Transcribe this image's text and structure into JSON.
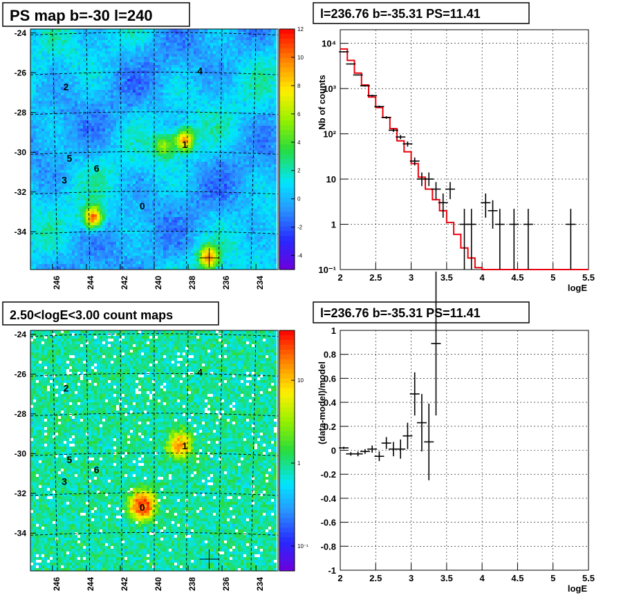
{
  "chart_data": [
    {
      "type": "heatmap",
      "title": "PS map b=-30 l=240",
      "x_ticks": [
        "246",
        "244",
        "242",
        "240",
        "238",
        "236",
        "234"
      ],
      "y_ticks": [
        "-24",
        "-26",
        "-28",
        "-30",
        "-32",
        "-34"
      ],
      "colorbar_ticks": [
        "12",
        "10",
        "8",
        "6",
        "4",
        "2",
        "0",
        "-2",
        "-4"
      ],
      "colorbar_range": [
        -5,
        12
      ],
      "sources": [
        {
          "label": "0",
          "l": 240.7,
          "b": -32.7
        },
        {
          "label": "1",
          "l": 238.2,
          "b": -29.6
        },
        {
          "label": "2",
          "l": 245.2,
          "b": -26.7
        },
        {
          "label": "3",
          "l": 245.3,
          "b": -31.4
        },
        {
          "label": "4",
          "l": 237.3,
          "b": -25.9
        },
        {
          "label": "5",
          "l": 245.0,
          "b": -30.3
        },
        {
          "label": "6",
          "l": 243.4,
          "b": -30.8
        }
      ],
      "hotspots": [
        {
          "l": 243.6,
          "b": -33.3,
          "value": 10
        },
        {
          "l": 239.4,
          "b": -29.7,
          "value": 5
        },
        {
          "l": 238.2,
          "b": -29.4,
          "value": 9
        },
        {
          "l": 236.8,
          "b": -35.3,
          "value": 9
        }
      ],
      "marker": {
        "l": 236.76,
        "b": -35.31
      }
    },
    {
      "type": "line",
      "title": "l=236.76 b=-35.31 PS=11.41",
      "xlabel": "logE",
      "ylabel": "Nb of counts",
      "yscale": "log",
      "xlim": [
        2,
        5.5
      ],
      "ylim": [
        0.1,
        20000
      ],
      "x_ticks": [
        "2",
        "2.5",
        "3",
        "3.5",
        "4",
        "4.5",
        "5",
        "5.5"
      ],
      "y_ticks": [
        "10^-1",
        "1",
        "10",
        "10^2",
        "10^3",
        "10^4"
      ],
      "grid": true,
      "series": [
        {
          "kind": "model_step",
          "color": "#e8000b",
          "edges": [
            2,
            2.1,
            2.2,
            2.3,
            2.4,
            2.5,
            2.6,
            2.7,
            2.8,
            2.9,
            3.0,
            3.1,
            3.2,
            3.3,
            3.4,
            3.5,
            3.6,
            3.7,
            3.8,
            3.9,
            4.0,
            5.5
          ],
          "values": [
            7500,
            4200,
            2200,
            1200,
            650,
            380,
            230,
            130,
            70,
            40,
            22,
            11,
            6,
            3.5,
            2,
            1.1,
            0.6,
            0.3,
            0.18,
            0.11,
            0.1
          ]
        },
        {
          "kind": "data_points",
          "color": "#000000",
          "x": [
            2.05,
            2.15,
            2.25,
            2.35,
            2.45,
            2.55,
            2.65,
            2.75,
            2.85,
            2.95,
            3.05,
            3.15,
            3.25,
            3.35,
            3.45,
            3.55,
            3.75,
            3.85,
            4.05,
            4.15,
            4.25,
            4.45,
            4.65,
            5.25
          ],
          "y": [
            6500,
            3500,
            2000,
            1150,
            700,
            400,
            230,
            120,
            85,
            60,
            25,
            10,
            10,
            6,
            3,
            6,
            1,
            1,
            3,
            2,
            1,
            1,
            1,
            1
          ],
          "ylo": [
            6300,
            3400,
            1950,
            1100,
            670,
            380,
            215,
            110,
            76,
            52,
            20,
            7,
            7,
            3.6,
            1.4,
            3.6,
            0.1,
            0.1,
            1.4,
            0.8,
            0.1,
            0.1,
            0.1,
            0.1
          ],
          "yhi": [
            6700,
            3600,
            2050,
            1200,
            730,
            420,
            245,
            131,
            94,
            68,
            30,
            14,
            14,
            8.6,
            4.8,
            8.6,
            2.2,
            2.2,
            4.8,
            3.4,
            2.2,
            2.2,
            2.2,
            2.2
          ]
        }
      ]
    },
    {
      "type": "heatmap",
      "title": "2.50<logE<3.00 count maps",
      "x_ticks": [
        "246",
        "244",
        "242",
        "240",
        "238",
        "236",
        "234"
      ],
      "y_ticks": [
        "-24",
        "-26",
        "-28",
        "-30",
        "-32",
        "-34"
      ],
      "colorbar_scale": "log",
      "colorbar_ticks": [
        "10",
        "1",
        "10^-1"
      ],
      "colorbar_range": [
        0.05,
        40
      ],
      "sources": [
        {
          "label": "0",
          "l": 240.7,
          "b": -32.7
        },
        {
          "label": "1",
          "l": 238.2,
          "b": -29.6
        },
        {
          "label": "2",
          "l": 245.2,
          "b": -26.7
        },
        {
          "label": "3",
          "l": 245.3,
          "b": -31.4
        },
        {
          "label": "4",
          "l": 237.3,
          "b": -25.9
        },
        {
          "label": "5",
          "l": 245.0,
          "b": -30.3
        },
        {
          "label": "6",
          "l": 243.4,
          "b": -30.8
        }
      ],
      "hotspots": [
        {
          "l": 240.7,
          "b": -32.6,
          "value": 30
        },
        {
          "l": 238.5,
          "b": -29.6,
          "value": 12
        }
      ],
      "marker": {
        "l": 236.76,
        "b": -35.31
      }
    },
    {
      "type": "scatter",
      "title": "l=236.76 b=-35.31 PS=11.41",
      "xlabel": "logE",
      "ylabel": "(data-model)/model",
      "xlim": [
        2,
        5.5
      ],
      "ylim": [
        -1,
        1
      ],
      "x_ticks": [
        "2",
        "2.5",
        "3",
        "3.5",
        "4",
        "4.5",
        "5",
        "5.5"
      ],
      "y_ticks": [
        "1",
        "0.8",
        "0.6",
        "0.4",
        "0.2",
        "0",
        "-0.2",
        "-0.4",
        "-0.6",
        "-0.8",
        "-1"
      ],
      "grid": true,
      "series": [
        {
          "kind": "data_points",
          "color": "#000000",
          "x": [
            2.05,
            2.15,
            2.25,
            2.35,
            2.45,
            2.55,
            2.65,
            2.75,
            2.85,
            2.95,
            3.05,
            3.15,
            3.25,
            3.35
          ],
          "y": [
            0.02,
            -0.03,
            -0.03,
            -0.01,
            0.01,
            -0.05,
            0.06,
            0.01,
            0.01,
            0.12,
            0.47,
            0.23,
            0.07,
            0.89
          ],
          "yerr": [
            0.01,
            0.015,
            0.02,
            0.02,
            0.03,
            0.04,
            0.05,
            0.06,
            0.08,
            0.11,
            0.18,
            0.24,
            0.32,
            0.6
          ]
        }
      ]
    }
  ]
}
